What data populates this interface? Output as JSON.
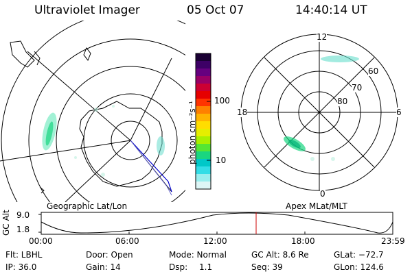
{
  "header": {
    "title": "Ultraviolet Imager",
    "date": "05 Oct 07",
    "time": "14:40:14 UT"
  },
  "left_panel": {
    "label": "Geographic Lat/Lon"
  },
  "right_panel": {
    "label": "Apex MLat/MLT",
    "mlt_labels": [
      "12",
      "18",
      "6",
      "0"
    ],
    "mlat_labels": [
      "60",
      "70",
      "80"
    ]
  },
  "colorbar": {
    "unit_label": "photon cm⁻²s⁻¹",
    "ticks": [
      "100",
      "10"
    ],
    "colors": [
      "#1a0033",
      "#3d0066",
      "#66007f",
      "#990066",
      "#cc0033",
      "#e60000",
      "#ff3300",
      "#ff8000",
      "#ffb300",
      "#ffdd00",
      "#e6ee00",
      "#aaf000",
      "#55e633",
      "#1ad680",
      "#00c8c8",
      "#33dde6",
      "#99eeee",
      "#ddf6f6"
    ]
  },
  "timeline": {
    "axis_label": "GC Alt",
    "y_ticks": [
      "9.0",
      "1.8"
    ],
    "x_ticks": [
      "00:00",
      "06:00",
      "12:00",
      "18:00",
      "23:59"
    ],
    "marker_color": "#cc0000"
  },
  "info": {
    "filter": "Flt: LBHL",
    "door": "Door: Open",
    "mode": "Mode: Normal",
    "gc_alt": "GC Alt: 8.6 Re",
    "glat": "GLat: −72.7",
    "ip": "IP: 36.0",
    "gain": "Gain: 14",
    "dsp_label": "Dsp:",
    "dsp_value": "1.1",
    "seq": "Seq: 39",
    "glon": "GLon: 124.6"
  }
}
